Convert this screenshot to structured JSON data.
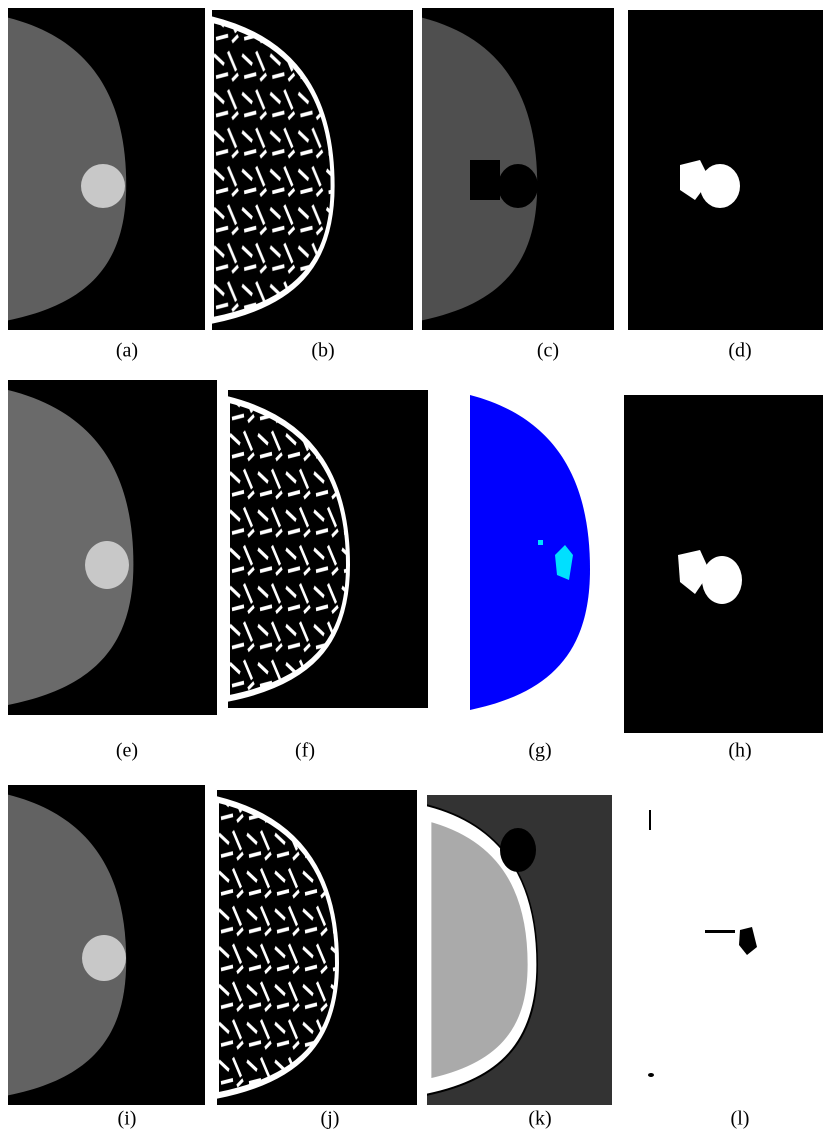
{
  "captions": [
    "(a)",
    "(b)",
    "(c)",
    "(d)",
    "(e)",
    "(f)",
    "(g)",
    "(h)",
    "(i)",
    "(j)",
    "(k)",
    "(l)"
  ]
}
